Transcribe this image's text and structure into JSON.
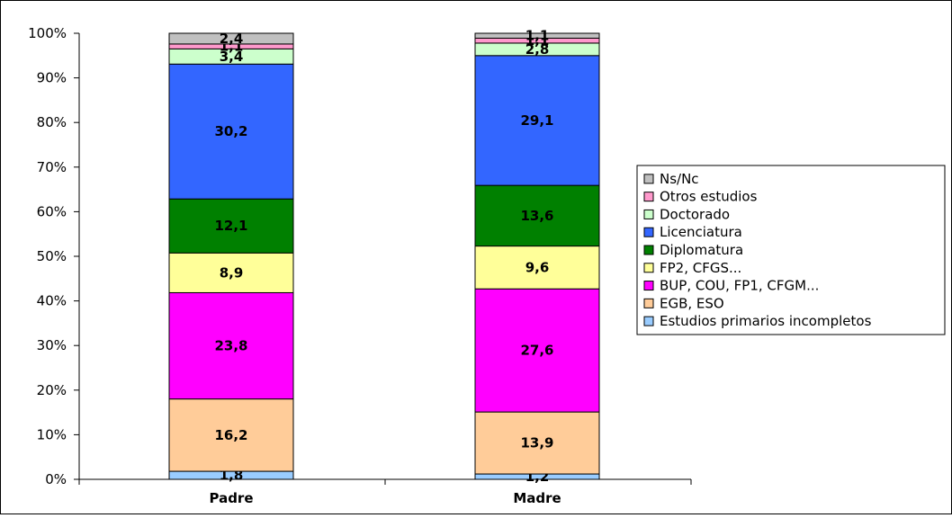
{
  "chart_data": {
    "type": "bar",
    "stacked": true,
    "percent_stacked": true,
    "categories": [
      "Padre",
      "Madre"
    ],
    "series": [
      {
        "name": "Estudios primarios incompletos",
        "values": [
          1.8,
          1.2
        ],
        "labels": [
          "1,8",
          "1,2"
        ],
        "color": "#99CCFF"
      },
      {
        "name": "EGB, ESO",
        "values": [
          16.2,
          13.9
        ],
        "labels": [
          "16,2",
          "13,9"
        ],
        "color": "#FFCC99"
      },
      {
        "name": "BUP, COU, FP1, CFGM...",
        "values": [
          23.8,
          27.6
        ],
        "labels": [
          "23,8",
          "27,6"
        ],
        "color": "#FF00FF"
      },
      {
        "name": "FP2, CFGS...",
        "values": [
          8.9,
          9.6
        ],
        "labels": [
          "8,9",
          "9,6"
        ],
        "color": "#FFFF99"
      },
      {
        "name": "Diplomatura",
        "values": [
          12.1,
          13.6
        ],
        "labels": [
          "12,1",
          "13,6"
        ],
        "color": "#008000"
      },
      {
        "name": "Licenciatura",
        "values": [
          30.2,
          29.1
        ],
        "labels": [
          "30,2",
          "29,1"
        ],
        "color": "#3366FF"
      },
      {
        "name": "Doctorado",
        "values": [
          3.4,
          2.8
        ],
        "labels": [
          "3,4",
          "2,8"
        ],
        "color": "#CCFFCC"
      },
      {
        "name": "Otros estudios",
        "values": [
          1.1,
          1.1
        ],
        "labels": [
          "1,1",
          "1,1"
        ],
        "color": "#FF99CC"
      },
      {
        "name": "Ns/Nc",
        "values": [
          2.4,
          1.1
        ],
        "labels": [
          "2,4",
          "1,1"
        ],
        "color": "#C0C0C0"
      }
    ],
    "y_ticks": [
      "0%",
      "10%",
      "20%",
      "30%",
      "40%",
      "50%",
      "60%",
      "70%",
      "80%",
      "90%",
      "100%"
    ],
    "ylim": [
      0,
      100
    ],
    "grid": false,
    "legend_position": "right"
  }
}
